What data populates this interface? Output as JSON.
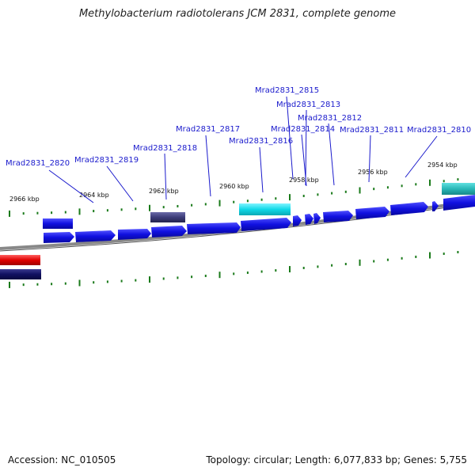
{
  "title": "Methylobacterium radiotolerans JCM 2831, complete genome",
  "footer": {
    "accession": "Accession: NC_010505",
    "topology": "Topology: circular; Length: 6,077,833 bp; Genes: 5,755"
  },
  "colors": {
    "gene_blue": "#1010e0",
    "gene_dark_purple": "#3c3c78",
    "gene_cyan": "#10d8e8",
    "gene_teal": "#28b8b8",
    "gene_red": "#e00000",
    "gene_navy": "#101060",
    "tick_green": "#1a7a1a",
    "backbone": "#888888",
    "label_blue": "#1a1acc"
  },
  "position_labels": [
    "2966 kbp",
    "2964 kbp",
    "2962 kbp",
    "2960 kbp",
    "2958 kbp",
    "2956 kbp",
    "2954 kbp"
  ],
  "gene_labels": [
    "Mrad2831_2820",
    "Mrad2831_2819",
    "Mrad2831_2818",
    "Mrad2831_2817",
    "Mrad2831_2816",
    "Mrad2831_2815",
    "Mrad2831_2813",
    "Mrad2831_2814",
    "Mrad2831_2812",
    "Mrad2831_2811",
    "Mrad2831_2810"
  ]
}
